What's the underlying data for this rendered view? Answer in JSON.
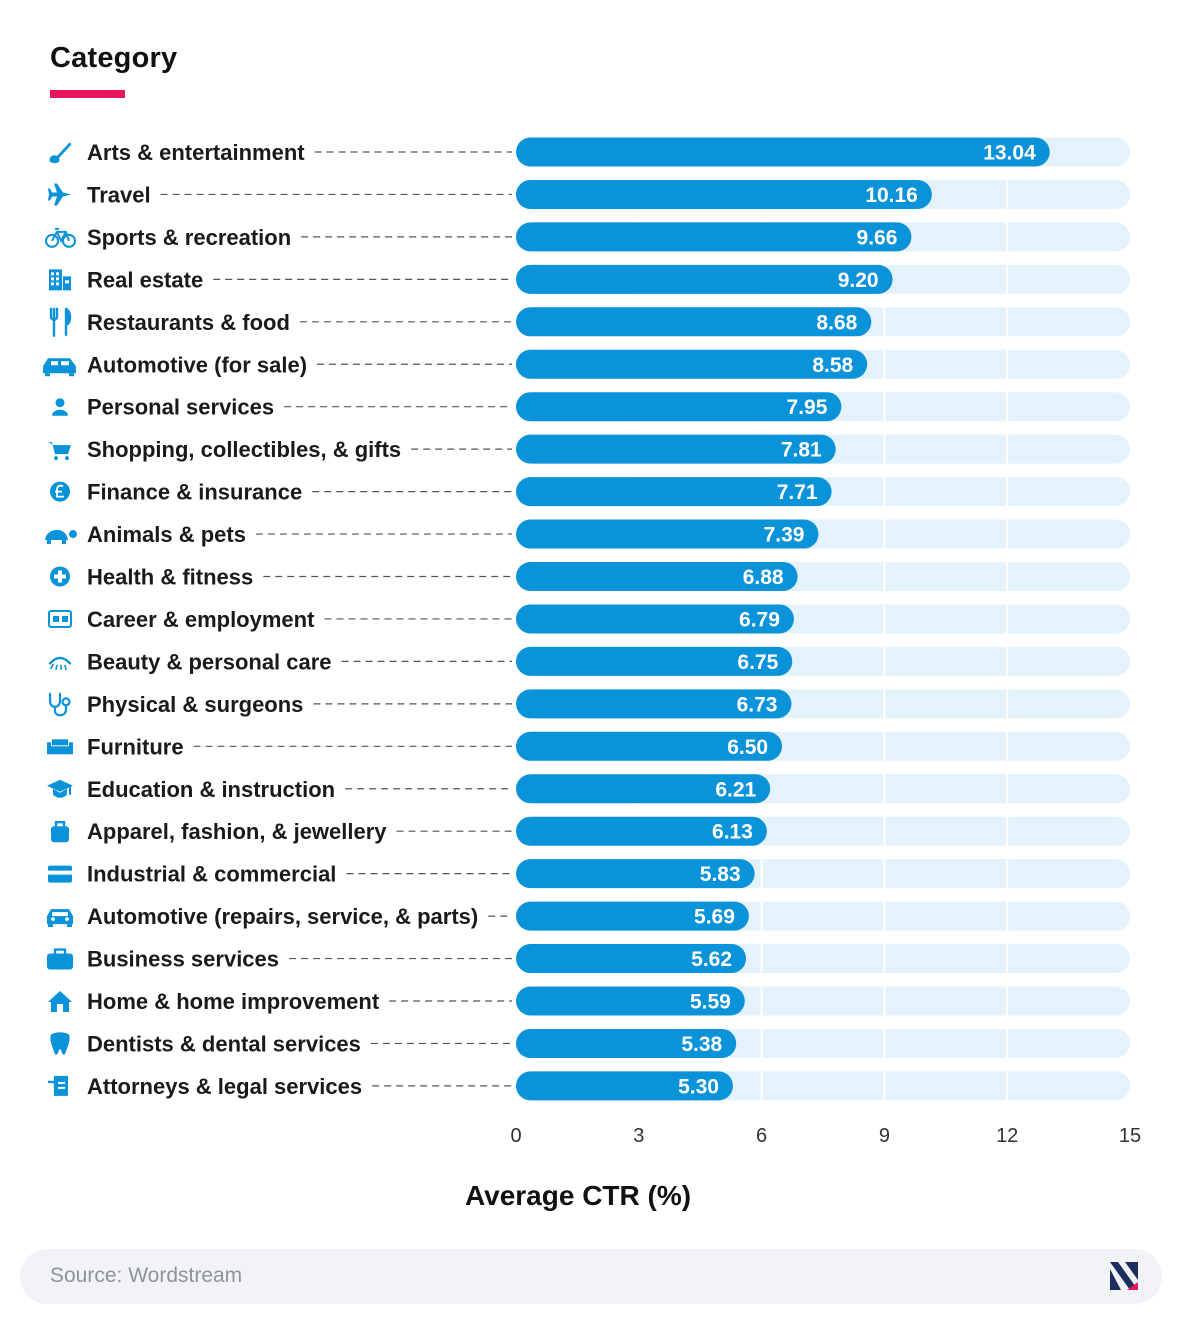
{
  "header": {
    "title": "Category"
  },
  "chart_data": {
    "type": "bar",
    "orientation": "horizontal",
    "xlabel": "Average CTR (%)",
    "xlim": [
      0,
      15
    ],
    "xticks": [
      "0",
      "3",
      "6",
      "9",
      "12",
      "15"
    ],
    "grid": true,
    "categories": [
      "Arts & entertainment",
      "Travel",
      "Sports & recreation",
      "Real estate",
      "Restaurants & food",
      "Automotive (for sale)",
      "Personal services",
      "Shopping, collectibles, & gifts",
      "Finance & insurance",
      "Animals & pets",
      "Health & fitness",
      "Career & employment",
      "Beauty & personal care",
      "Physical & surgeons",
      "Furniture",
      "Education & instruction",
      "Apparel, fashion, & jewellery",
      "Industrial & commercial",
      "Automotive (repairs, service, & parts)",
      "Business services",
      "Home & home improvement",
      "Dentists & dental services",
      "Attorneys & legal services"
    ],
    "values": [
      13.04,
      10.16,
      9.66,
      9.2,
      8.68,
      8.58,
      7.95,
      7.81,
      7.71,
      7.39,
      6.88,
      6.79,
      6.75,
      6.73,
      6.5,
      6.21,
      6.13,
      5.83,
      5.69,
      5.62,
      5.59,
      5.38,
      5.3
    ],
    "value_labels": [
      "13.04",
      "10.16",
      "9.66",
      "9.20",
      "8.68",
      "8.58",
      "7.95",
      "7.81",
      "7.71",
      "7.39",
      "6.88",
      "6.79",
      "6.75",
      "6.73",
      "6.50",
      "6.21",
      "6.13",
      "5.83",
      "5.69",
      "5.62",
      "5.59",
      "5.38",
      "5.30"
    ],
    "icons": [
      "paintbrush-icon",
      "airplane-icon",
      "bicycle-icon",
      "building-icon",
      "fork-knife-icon",
      "car-front-icon",
      "person-icon",
      "shopping-cart-icon",
      "pound-coin-icon",
      "turtle-icon",
      "medical-cross-icon",
      "id-card-icon",
      "eyelash-icon",
      "stethoscope-icon",
      "sofa-icon",
      "graduation-cap-icon",
      "handbag-icon",
      "credit-card-icon",
      "car-icon",
      "briefcase-icon",
      "house-icon",
      "tooth-icon",
      "legal-document-icon"
    ],
    "colors": {
      "bar": "#0b93d9",
      "track": "#e4f3fb",
      "value_label": "#ffffff",
      "icon": "#0b93d9",
      "leader": "#555555"
    }
  },
  "footer": {
    "source": "Source: Wordstream",
    "logo": "brand-logo-icon"
  }
}
